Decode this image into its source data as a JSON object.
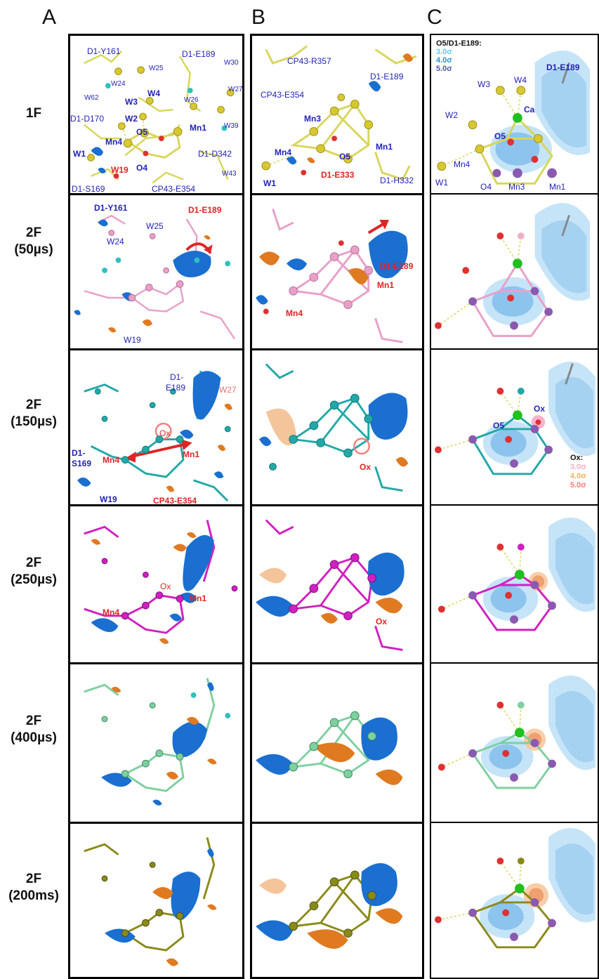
{
  "columns": {
    "a": "A",
    "b": "B",
    "c": "C"
  },
  "rows": [
    {
      "line1": "1F",
      "line2": ""
    },
    {
      "line1": "2F",
      "line2": "(50µs)"
    },
    {
      "line1": "2F",
      "line2": "(150µs)"
    },
    {
      "line1": "2F",
      "line2": "(250µs)"
    },
    {
      "line1": "2F",
      "line2": "(400µs)"
    },
    {
      "line1": "2F",
      "line2": "(200ms)"
    }
  ],
  "colors": {
    "1F": "#d8d65a",
    "50us": "#e8a0c8",
    "150us": "#22a8a8",
    "250us": "#d020c0",
    "400us": "#7fcfa0",
    "200ms": "#8a8a1a",
    "negative_density": "#1a6fd0",
    "positive_density": "#e07a20",
    "oxygen": "#e03030",
    "manganese": "#8a5ab0",
    "calcium": "#20c020"
  },
  "panelA": {
    "r1": {
      "d1_y161": "D1-Y161",
      "d1_e189": "D1-E189",
      "w30": "W30",
      "w25": "W25",
      "w24": "W24",
      "w27": "W27",
      "w62": "W62",
      "w3": "W3",
      "w4": "W4",
      "w26": "W26",
      "d1_d170": "D1-D170",
      "w2": "W2",
      "mn1": "Mn1",
      "w39": "W39",
      "mn4": "Mn4",
      "o5": "O5",
      "w1": "W1",
      "d1_d342": "D1-D342",
      "w19": "W19",
      "o4": "O4",
      "w43": "W43",
      "d1_s169": "D1-S169",
      "cp43_e354": "CP43-E354"
    },
    "r2": {
      "d1_y161": "D1-Y161",
      "d1_e189": "D1-E189",
      "w25": "W25",
      "w24": "W24",
      "w19": "W19"
    },
    "r3": {
      "d1": "D1-",
      "e189": "E189",
      "w27": "W27",
      "ox": "Ox",
      "mn1": "Mn1",
      "mn4": "Mn4",
      "d1s": "D1-",
      "s169": "S169",
      "w19": "W19",
      "cp43_e354": "CP43-E354"
    },
    "r4": {
      "ox": "Ox",
      "mn1": "Mn1",
      "mn4": "Mn4"
    }
  },
  "panelB": {
    "r1": {
      "cp43_r357": "CP43-R357",
      "d1_e189": "D1-E189",
      "cp43_e354": "CP43-E354",
      "mn3": "Mn3",
      "mn4": "Mn4",
      "o5": "O5",
      "mn1": "Mn1",
      "w1": "W1",
      "d1_e333": "D1-E333",
      "d1_h332": "D1-H332"
    },
    "r2": {
      "d1_e189": "D1-E189",
      "mn1": "Mn1",
      "mn4": "Mn4"
    },
    "r3": {
      "ox": "Ox"
    },
    "r4": {
      "ox": "Ox"
    }
  },
  "panelC": {
    "r1": {
      "title": "O5/D1-E189:",
      "s3": "3.0σ",
      "s4": "4.0σ",
      "s5": "5.0σ",
      "w3": "W3",
      "w4": "W4",
      "d1_e189": "D1-E189",
      "ca": "Ca",
      "w2": "W2",
      "o5": "O5",
      "mn4": "Mn4",
      "w1": "W1",
      "o4": "O4",
      "mn3": "Mn3",
      "mn1": "Mn1"
    },
    "r3": {
      "o5": "O5",
      "ox": "Ox",
      "legend_title": "Ox:",
      "s3": "3.0σ",
      "s4": "4.0σ",
      "s5": "5.0σ"
    }
  }
}
